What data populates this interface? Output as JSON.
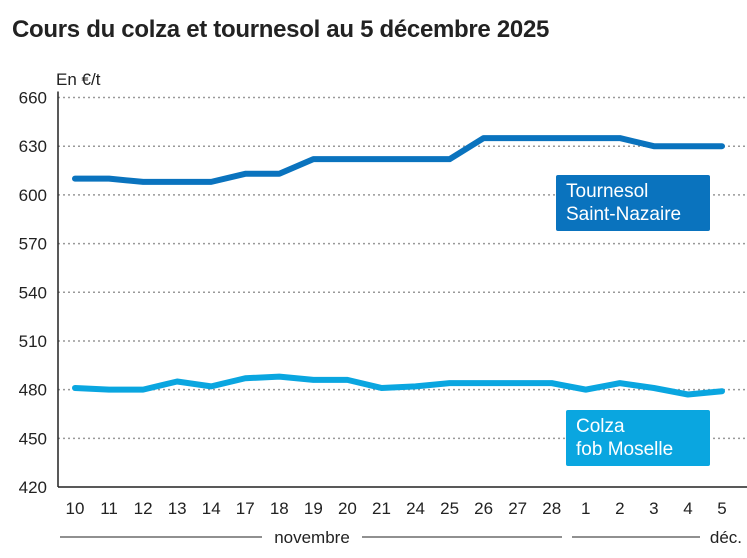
{
  "chart_data": {
    "type": "line",
    "title": "Cours du colza et tournesol au 5 décembre 2025",
    "ylabel": "En €/t",
    "ylim": [
      420,
      660
    ],
    "yticks": [
      420,
      450,
      480,
      510,
      540,
      570,
      600,
      630,
      660
    ],
    "grid": true,
    "categories": [
      "10",
      "11",
      "12",
      "13",
      "14",
      "17",
      "18",
      "19",
      "20",
      "21",
      "24",
      "25",
      "26",
      "27",
      "28",
      "1",
      "2",
      "3",
      "4",
      "5"
    ],
    "month_labels": [
      {
        "label": "novembre",
        "from": 0,
        "to": 14
      },
      {
        "label": "déc.",
        "from": 15,
        "to": 19
      }
    ],
    "series": [
      {
        "name": "Tournesol Saint-Nazaire",
        "label_lines": [
          "Tournesol",
          "Saint-Nazaire"
        ],
        "color": "#0a73be",
        "values": [
          610,
          610,
          608,
          608,
          608,
          613,
          613,
          622,
          622,
          622,
          622,
          622,
          635,
          635,
          635,
          635,
          635,
          630,
          630,
          630
        ]
      },
      {
        "name": "Colza fob Moselle",
        "label_lines": [
          "Colza",
          "fob Moselle"
        ],
        "color": "#0aa6e0",
        "values": [
          481,
          480,
          480,
          485,
          482,
          487,
          488,
          486,
          486,
          481,
          482,
          484,
          484,
          484,
          484,
          480,
          484,
          481,
          477,
          479
        ]
      }
    ]
  }
}
